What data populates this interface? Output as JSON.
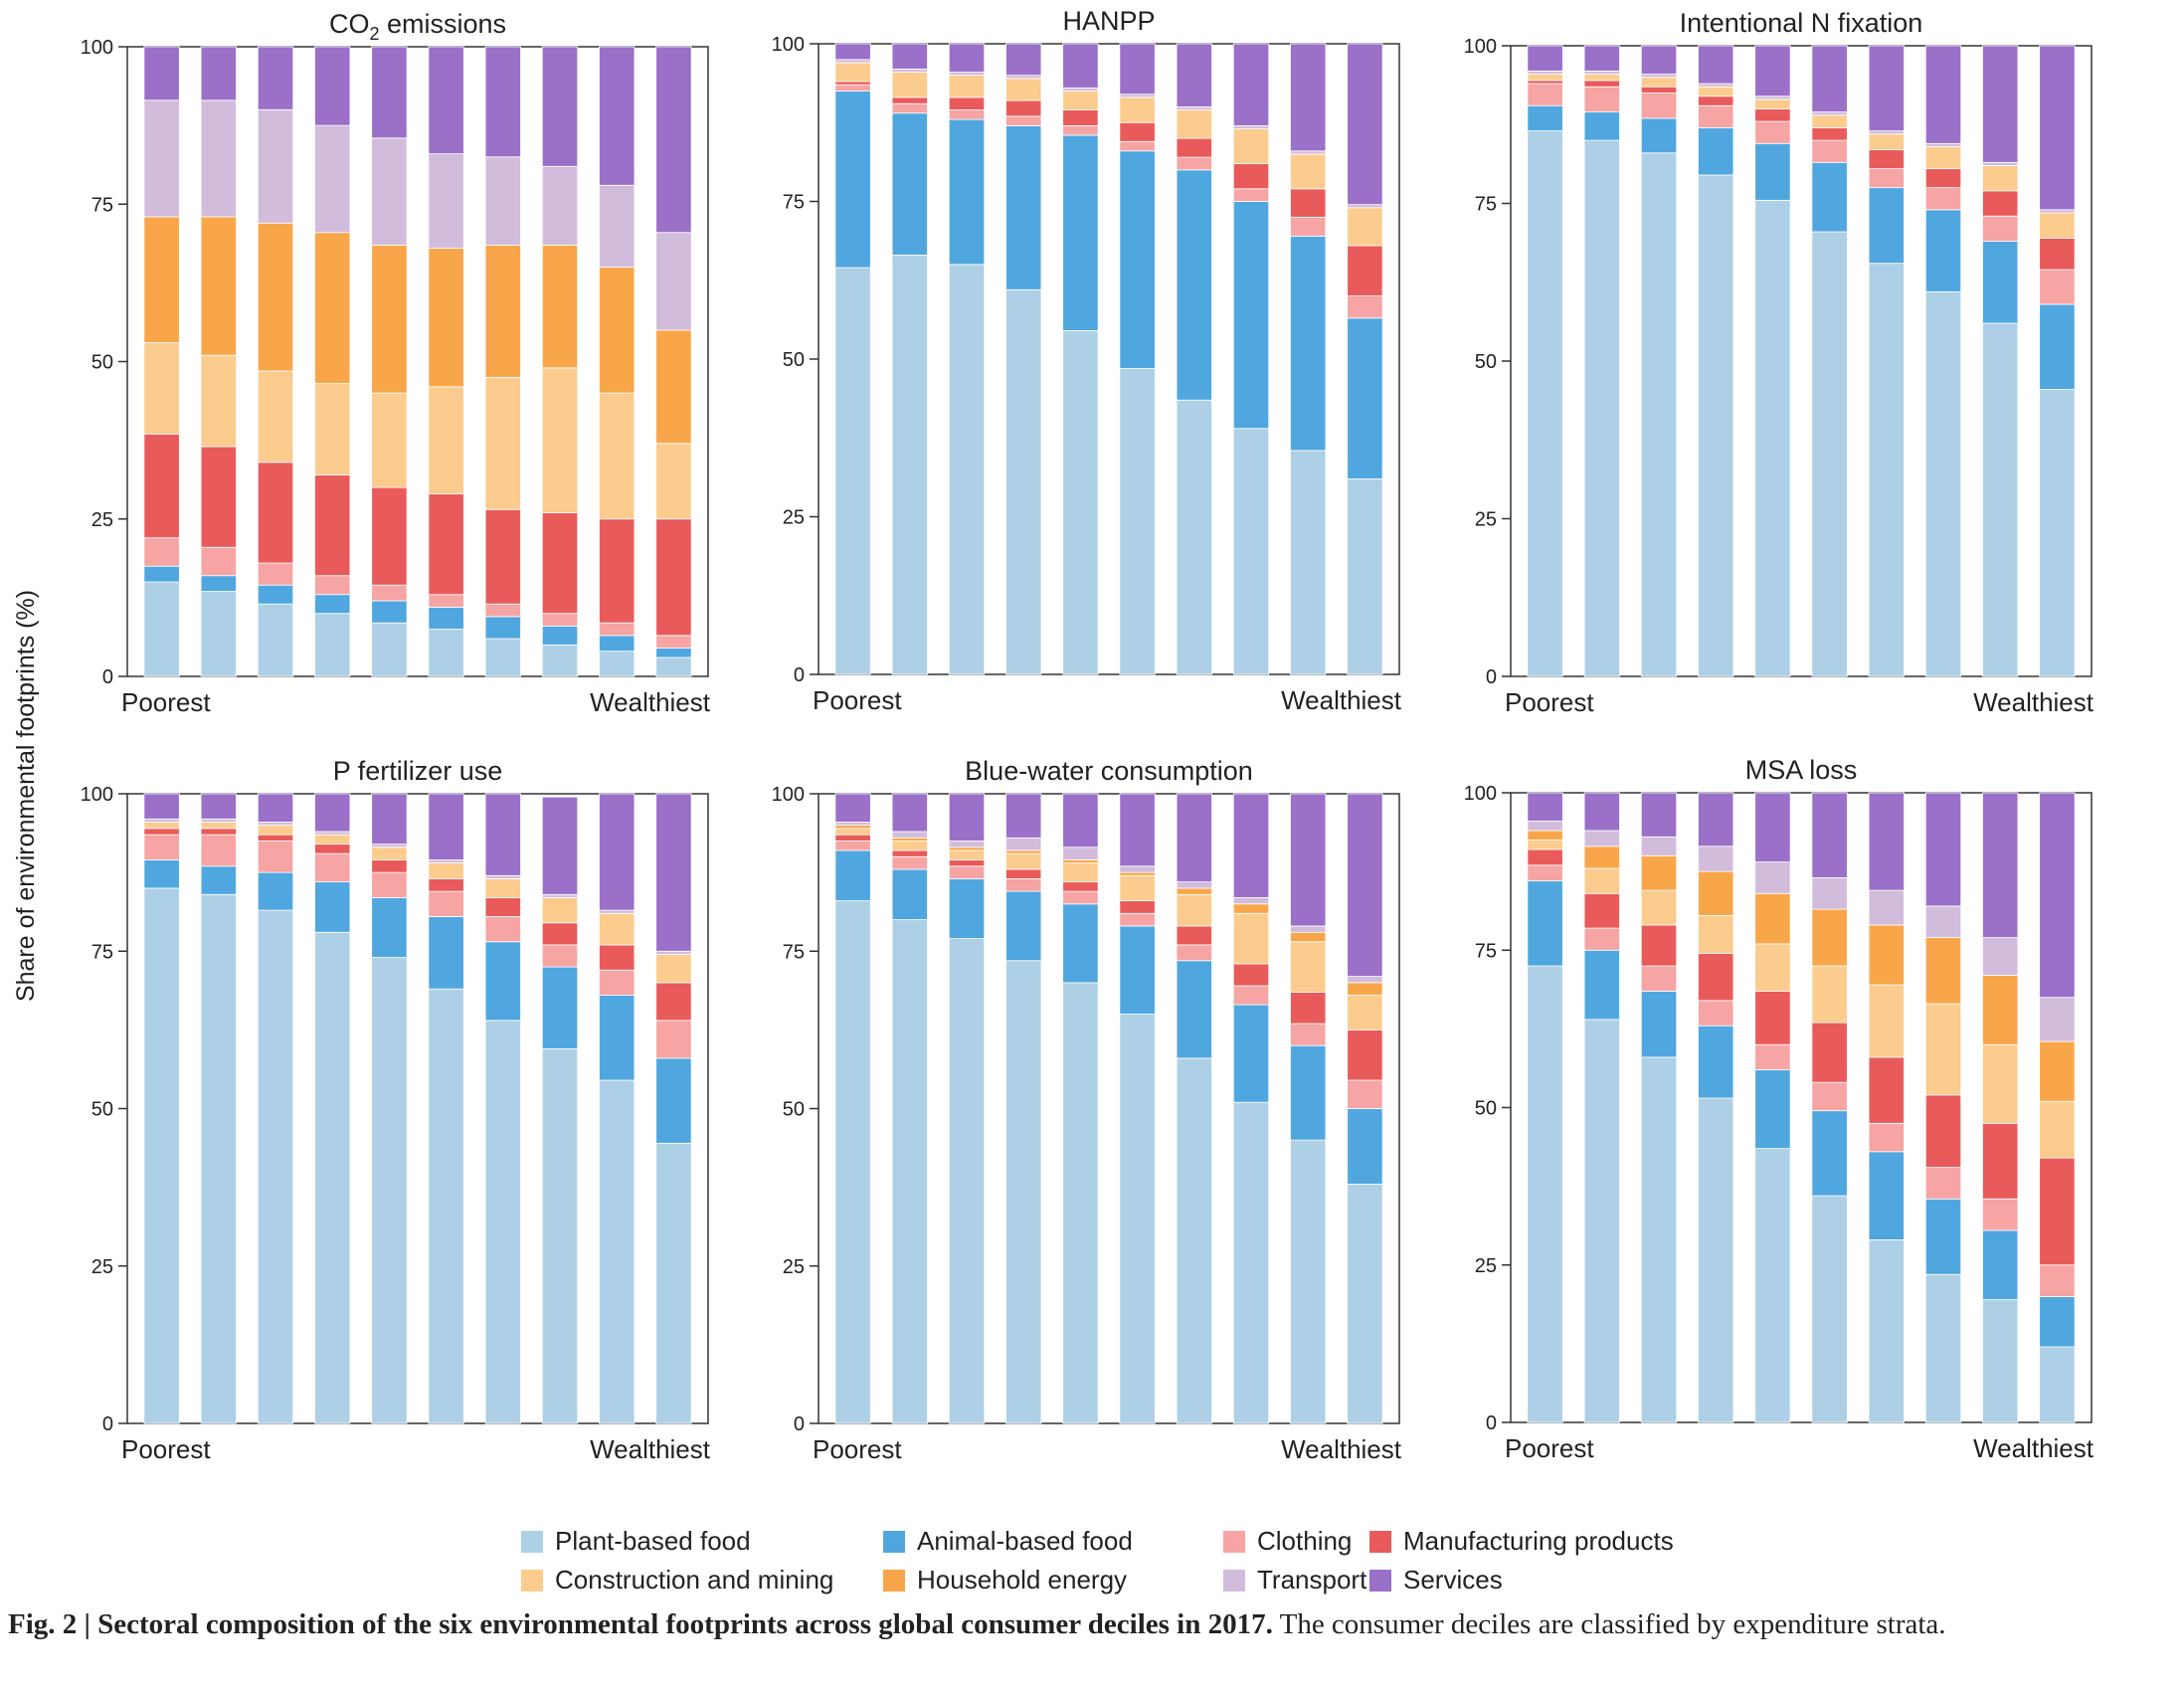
{
  "y_axis_label": "Share of environmental footprints (%)",
  "legend": [
    {
      "name": "Plant-based food",
      "color": "#aed0e6"
    },
    {
      "name": "Animal-based food",
      "color": "#50a7e0"
    },
    {
      "name": "Clothing",
      "color": "#f6a4a4"
    },
    {
      "name": "Manufacturing products",
      "color": "#e95b5b"
    },
    {
      "name": "Construction and mining",
      "color": "#fbcc8e"
    },
    {
      "name": "Household energy",
      "color": "#f9a64a"
    },
    {
      "name": "Transport",
      "color": "#d2bcdc"
    },
    {
      "name": "Services",
      "color": "#9a70c9"
    }
  ],
  "caption": {
    "bold": "Fig. 2 | Sectoral composition of the six environmental footprints across global consumer deciles in 2017.",
    "text": " The consumer deciles are classified by expenditure strata."
  },
  "chart_data": [
    {
      "type": "bar",
      "stacked": true,
      "title": "CO2 emissions",
      "title_main": "CO",
      "title_sub": "2",
      "title_rest": " emissions",
      "ylim": [
        0,
        100
      ],
      "yticks": [
        "0",
        "25",
        "50",
        "75",
        "100"
      ],
      "xlabel_left": "Poorest",
      "xlabel_right": "Wealthiest",
      "series": [
        {
          "name": "Plant-based food",
          "values": [
            15,
            13.5,
            11.5,
            10,
            8.5,
            7.5,
            6,
            5,
            4,
            3
          ]
        },
        {
          "name": "Animal-based food",
          "values": [
            2.5,
            2.5,
            3,
            3,
            3.5,
            3.5,
            3.5,
            3,
            2.5,
            1.5
          ]
        },
        {
          "name": "Clothing",
          "values": [
            4.5,
            4.5,
            3.5,
            3,
            2.5,
            2,
            2,
            2,
            2,
            2
          ]
        },
        {
          "name": "Manufacturing products",
          "values": [
            16.5,
            16,
            16,
            16,
            15.5,
            16,
            15,
            16,
            16.5,
            18.5
          ]
        },
        {
          "name": "Construction and mining",
          "values": [
            14.5,
            14.5,
            14.5,
            14.5,
            15,
            17,
            21,
            23,
            20,
            12
          ]
        },
        {
          "name": "Household energy",
          "values": [
            20,
            22,
            23.5,
            24,
            23.5,
            22,
            21,
            19.5,
            20,
            18
          ]
        },
        {
          "name": "Transport",
          "values": [
            18.5,
            18.5,
            18,
            17,
            17,
            15,
            14,
            12.5,
            13,
            15.5
          ]
        },
        {
          "name": "Services",
          "values": [
            8.5,
            8.5,
            10,
            12.5,
            14.5,
            17,
            17.5,
            19,
            22,
            29.5
          ]
        }
      ]
    },
    {
      "type": "bar",
      "stacked": true,
      "title": "HANPP",
      "ylim": [
        0,
        100
      ],
      "yticks": [
        "0",
        "25",
        "50",
        "75",
        "100"
      ],
      "xlabel_left": "Poorest",
      "xlabel_right": "Wealthiest",
      "series": [
        {
          "name": "Plant-based food",
          "values": [
            64.5,
            66.5,
            65,
            61,
            54.5,
            48.5,
            43.5,
            39,
            35.5,
            31
          ]
        },
        {
          "name": "Animal-based food",
          "values": [
            28,
            22.5,
            23,
            26,
            31,
            34.5,
            36.5,
            36,
            34,
            25.5
          ]
        },
        {
          "name": "Clothing",
          "values": [
            1,
            1.5,
            1.5,
            1.5,
            1.5,
            1.5,
            2,
            2,
            3,
            3.5
          ]
        },
        {
          "name": "Manufacturing products",
          "values": [
            0.5,
            1,
            2,
            2.5,
            2.5,
            3,
            3,
            4,
            4.5,
            8
          ]
        },
        {
          "name": "Construction and mining",
          "values": [
            3,
            4,
            3.5,
            3.5,
            3,
            4,
            4.5,
            5.5,
            5.5,
            6
          ]
        },
        {
          "name": "Household energy",
          "values": [
            0,
            0,
            0,
            0,
            0,
            0,
            0,
            0,
            0,
            0
          ]
        },
        {
          "name": "Transport",
          "values": [
            0.5,
            0.5,
            0.5,
            0.5,
            0.5,
            0.5,
            0.5,
            0.5,
            0.5,
            0.5
          ]
        },
        {
          "name": "Services",
          "values": [
            2.5,
            4,
            4.5,
            5,
            7,
            8,
            10,
            13,
            17,
            25.5
          ]
        }
      ]
    },
    {
      "type": "bar",
      "stacked": true,
      "title": "Intentional N fixation",
      "ylim": [
        0,
        100
      ],
      "yticks": [
        "0",
        "25",
        "50",
        "75",
        "100"
      ],
      "xlabel_left": "Poorest",
      "xlabel_right": "Wealthiest",
      "series": [
        {
          "name": "Plant-based food",
          "values": [
            86.5,
            85,
            83,
            79.5,
            75.5,
            70.5,
            65.5,
            61,
            56,
            45.5
          ]
        },
        {
          "name": "Animal-based food",
          "values": [
            4,
            4.5,
            5.5,
            7.5,
            9,
            11,
            12,
            13,
            13,
            13.5
          ]
        },
        {
          "name": "Clothing",
          "values": [
            3.5,
            4,
            4,
            3.5,
            3.5,
            3.5,
            3,
            3.5,
            4,
            5.5
          ]
        },
        {
          "name": "Manufacturing products",
          "values": [
            0.5,
            1,
            1,
            1.5,
            2,
            2,
            3,
            3,
            4,
            5
          ]
        },
        {
          "name": "Construction and mining",
          "values": [
            1,
            1,
            1.5,
            1.5,
            1.5,
            2,
            2.5,
            3.5,
            4,
            4
          ]
        },
        {
          "name": "Household energy",
          "values": [
            0,
            0,
            0,
            0,
            0,
            0,
            0,
            0,
            0,
            0
          ]
        },
        {
          "name": "Transport",
          "values": [
            0.5,
            0.5,
            0.5,
            0.5,
            0.5,
            0.5,
            0.5,
            0.5,
            0.5,
            0.5
          ]
        },
        {
          "name": "Services",
          "values": [
            4,
            4,
            4.5,
            6,
            8,
            10.5,
            13.5,
            15.5,
            18.5,
            26
          ]
        }
      ]
    },
    {
      "type": "bar",
      "stacked": true,
      "title": "P fertilizer use",
      "ylim": [
        0,
        100
      ],
      "yticks": [
        "0",
        "25",
        "50",
        "75",
        "100"
      ],
      "xlabel_left": "Poorest",
      "xlabel_right": "Wealthiest",
      "series": [
        {
          "name": "Plant-based food",
          "values": [
            85,
            84,
            81.5,
            78,
            74,
            69,
            64,
            59.5,
            54.5,
            44.5
          ]
        },
        {
          "name": "Animal-based food",
          "values": [
            4.5,
            4.5,
            6,
            8,
            9.5,
            11.5,
            12.5,
            13,
            13.5,
            13.5
          ]
        },
        {
          "name": "Clothing",
          "values": [
            4,
            5,
            5,
            4.5,
            4,
            4,
            4,
            3.5,
            4,
            6
          ]
        },
        {
          "name": "Manufacturing products",
          "values": [
            1,
            1,
            1,
            1.5,
            2,
            2,
            3,
            3.5,
            4,
            6
          ]
        },
        {
          "name": "Construction and mining",
          "values": [
            1,
            1,
            1.5,
            1.5,
            2,
            2.5,
            3,
            4,
            5,
            4.5
          ]
        },
        {
          "name": "Household energy",
          "values": [
            0,
            0,
            0,
            0,
            0,
            0,
            0,
            0,
            0,
            0
          ]
        },
        {
          "name": "Transport",
          "values": [
            0.5,
            0.5,
            0.5,
            0.5,
            0.5,
            0.5,
            0.5,
            0.5,
            0.5,
            0.5
          ]
        },
        {
          "name": "Services",
          "values": [
            4,
            4,
            4.5,
            6,
            8,
            10.5,
            13,
            15.5,
            18.5,
            25
          ]
        }
      ]
    },
    {
      "type": "bar",
      "stacked": true,
      "title": "Blue-water consumption",
      "ylim": [
        0,
        100
      ],
      "yticks": [
        "0",
        "25",
        "50",
        "75",
        "100"
      ],
      "xlabel_left": "Poorest",
      "xlabel_right": "Wealthiest",
      "series": [
        {
          "name": "Plant-based food",
          "values": [
            83,
            80,
            77,
            73.5,
            70,
            65,
            58,
            51,
            45,
            38
          ]
        },
        {
          "name": "Animal-based food",
          "values": [
            8,
            8,
            9.5,
            11,
            12.5,
            14,
            15.5,
            15.5,
            15,
            12
          ]
        },
        {
          "name": "Clothing",
          "values": [
            1.5,
            2,
            2,
            2,
            2,
            2,
            2.5,
            3,
            3.5,
            4.5
          ]
        },
        {
          "name": "Manufacturing products",
          "values": [
            1,
            1,
            1,
            1.5,
            1.5,
            2,
            3,
            3.5,
            5,
            8
          ]
        },
        {
          "name": "Construction and mining",
          "values": [
            1,
            1.5,
            1.5,
            2.5,
            3,
            4,
            5,
            8,
            8,
            5.5
          ]
        },
        {
          "name": "Household energy",
          "values": [
            0.5,
            0.5,
            0.5,
            0.5,
            0.5,
            0.5,
            1,
            1.5,
            1.5,
            2
          ]
        },
        {
          "name": "Transport",
          "values": [
            0.5,
            1,
            1,
            2,
            2,
            1,
            1,
            1,
            1,
            1
          ]
        },
        {
          "name": "Services",
          "values": [
            4.5,
            6,
            7.5,
            7,
            8.5,
            11.5,
            14,
            16.5,
            21,
            29
          ]
        }
      ]
    },
    {
      "type": "bar",
      "stacked": true,
      "title": "MSA loss",
      "ylim": [
        0,
        100
      ],
      "yticks": [
        "0",
        "25",
        "50",
        "75",
        "100"
      ],
      "xlabel_left": "Poorest",
      "xlabel_right": "Wealthiest",
      "series": [
        {
          "name": "Plant-based food",
          "values": [
            72.5,
            64,
            58,
            51.5,
            43.5,
            36,
            29,
            23.5,
            19.5,
            12
          ]
        },
        {
          "name": "Animal-based food",
          "values": [
            13.5,
            11,
            10.5,
            11.5,
            12.5,
            13.5,
            14,
            12,
            11,
            8
          ]
        },
        {
          "name": "Clothing",
          "values": [
            2.5,
            3.5,
            4,
            4,
            4,
            4.5,
            4.5,
            5,
            5,
            5
          ]
        },
        {
          "name": "Manufacturing products",
          "values": [
            2.5,
            5.5,
            6.5,
            7.5,
            8.5,
            9.5,
            10.5,
            11.5,
            12,
            17
          ]
        },
        {
          "name": "Construction and mining",
          "values": [
            1.5,
            4,
            5.5,
            6,
            7.5,
            9,
            11.5,
            14.5,
            12.5,
            9
          ]
        },
        {
          "name": "Household energy",
          "values": [
            1.5,
            3.5,
            5.5,
            7,
            8,
            9,
            9.5,
            10.5,
            11,
            9.5
          ]
        },
        {
          "name": "Transport",
          "values": [
            1.5,
            2.5,
            3,
            4,
            5,
            5,
            5.5,
            5,
            6,
            7
          ]
        },
        {
          "name": "Services",
          "values": [
            4.5,
            6,
            7,
            8.5,
            11,
            13.5,
            15.5,
            18,
            23,
            32.5
          ]
        }
      ]
    }
  ]
}
